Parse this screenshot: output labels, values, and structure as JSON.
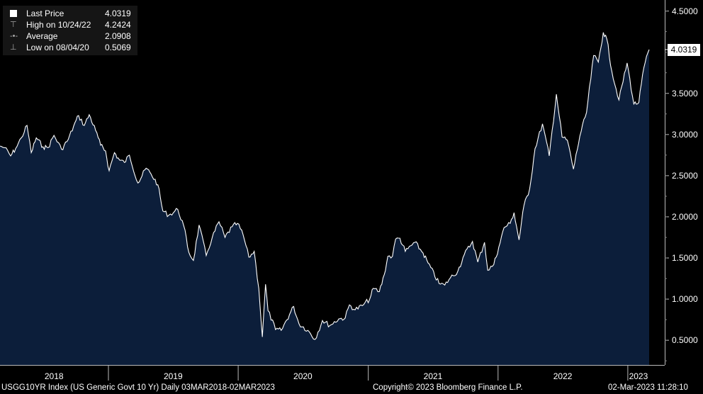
{
  "chart_data": {
    "type": "area",
    "title": "",
    "xlabel": "",
    "ylabel": "",
    "ylim": [
      0.2,
      4.6
    ],
    "y_ticks": [
      "4.5000",
      "3.5000",
      "3.0000",
      "2.5000",
      "2.0000",
      "1.5000",
      "1.0000",
      "0.5000"
    ],
    "x_ticks": [
      "2018",
      "2019",
      "2020",
      "2021",
      "2022",
      "2023"
    ],
    "x_range": [
      "2018-03-02",
      "2023-03-02"
    ],
    "last_value_label": "4.0319",
    "series": [
      {
        "name": "Last Price",
        "color": "#ffffff",
        "fill": "#0c1e3a",
        "points": [
          [
            "2018-03-02",
            2.86
          ],
          [
            "2018-03-15",
            2.84
          ],
          [
            "2018-04-01",
            2.74
          ],
          [
            "2018-04-15",
            2.83
          ],
          [
            "2018-05-01",
            2.96
          ],
          [
            "2018-05-17",
            3.11
          ],
          [
            "2018-05-29",
            2.78
          ],
          [
            "2018-06-12",
            2.96
          ],
          [
            "2018-07-01",
            2.85
          ],
          [
            "2018-07-15",
            2.84
          ],
          [
            "2018-08-01",
            2.99
          ],
          [
            "2018-08-22",
            2.82
          ],
          [
            "2018-09-10",
            2.94
          ],
          [
            "2018-09-25",
            3.1
          ],
          [
            "2018-10-09",
            3.23
          ],
          [
            "2018-10-25",
            3.11
          ],
          [
            "2018-11-08",
            3.24
          ],
          [
            "2018-11-26",
            3.05
          ],
          [
            "2018-12-10",
            2.87
          ],
          [
            "2018-12-24",
            2.8
          ],
          [
            "2019-01-03",
            2.56
          ],
          [
            "2019-01-18",
            2.78
          ],
          [
            "2019-02-01",
            2.69
          ],
          [
            "2019-02-15",
            2.66
          ],
          [
            "2019-03-01",
            2.75
          ],
          [
            "2019-03-25",
            2.41
          ],
          [
            "2019-04-17",
            2.59
          ],
          [
            "2019-05-01",
            2.52
          ],
          [
            "2019-05-20",
            2.39
          ],
          [
            "2019-06-03",
            2.07
          ],
          [
            "2019-06-20",
            2.02
          ],
          [
            "2019-07-15",
            2.09
          ],
          [
            "2019-08-01",
            1.89
          ],
          [
            "2019-08-15",
            1.57
          ],
          [
            "2019-08-28",
            1.47
          ],
          [
            "2019-09-13",
            1.9
          ],
          [
            "2019-10-03",
            1.53
          ],
          [
            "2019-10-20",
            1.75
          ],
          [
            "2019-11-08",
            1.94
          ],
          [
            "2019-11-25",
            1.75
          ],
          [
            "2019-12-15",
            1.88
          ],
          [
            "2019-12-30",
            1.92
          ],
          [
            "2020-01-15",
            1.78
          ],
          [
            "2020-01-31",
            1.51
          ],
          [
            "2020-02-15",
            1.58
          ],
          [
            "2020-02-28",
            1.13
          ],
          [
            "2020-03-09",
            0.54
          ],
          [
            "2020-03-18",
            1.18
          ],
          [
            "2020-03-25",
            0.86
          ],
          [
            "2020-04-15",
            0.63
          ],
          [
            "2020-05-01",
            0.62
          ],
          [
            "2020-06-05",
            0.91
          ],
          [
            "2020-06-20",
            0.7
          ],
          [
            "2020-07-15",
            0.62
          ],
          [
            "2020-08-04",
            0.51
          ],
          [
            "2020-08-25",
            0.74
          ],
          [
            "2020-09-15",
            0.68
          ],
          [
            "2020-10-10",
            0.76
          ],
          [
            "2020-10-28",
            0.77
          ],
          [
            "2020-11-09",
            0.93
          ],
          [
            "2020-11-25",
            0.87
          ],
          [
            "2020-12-15",
            0.92
          ],
          [
            "2021-01-05",
            1.0
          ],
          [
            "2021-01-15",
            1.13
          ],
          [
            "2021-02-01",
            1.09
          ],
          [
            "2021-02-15",
            1.3
          ],
          [
            "2021-02-25",
            1.52
          ],
          [
            "2021-03-10",
            1.52
          ],
          [
            "2021-03-19",
            1.73
          ],
          [
            "2021-03-31",
            1.74
          ],
          [
            "2021-04-15",
            1.58
          ],
          [
            "2021-05-12",
            1.69
          ],
          [
            "2021-06-04",
            1.56
          ],
          [
            "2021-06-18",
            1.44
          ],
          [
            "2021-07-19",
            1.19
          ],
          [
            "2021-08-04",
            1.17
          ],
          [
            "2021-08-20",
            1.26
          ],
          [
            "2021-09-10",
            1.34
          ],
          [
            "2021-09-28",
            1.54
          ],
          [
            "2021-10-21",
            1.7
          ],
          [
            "2021-11-05",
            1.45
          ],
          [
            "2021-11-24",
            1.69
          ],
          [
            "2021-12-03",
            1.35
          ],
          [
            "2021-12-20",
            1.42
          ],
          [
            "2022-01-03",
            1.63
          ],
          [
            "2022-01-18",
            1.87
          ],
          [
            "2022-02-04",
            1.92
          ],
          [
            "2022-02-15",
            2.05
          ],
          [
            "2022-03-01",
            1.72
          ],
          [
            "2022-03-15",
            2.14
          ],
          [
            "2022-03-31",
            2.34
          ],
          [
            "2022-04-15",
            2.83
          ],
          [
            "2022-05-06",
            3.13
          ],
          [
            "2022-05-25",
            2.74
          ],
          [
            "2022-06-14",
            3.49
          ],
          [
            "2022-06-30",
            2.97
          ],
          [
            "2022-07-15",
            2.93
          ],
          [
            "2022-08-01",
            2.58
          ],
          [
            "2022-08-19",
            2.98
          ],
          [
            "2022-09-07",
            3.27
          ],
          [
            "2022-09-27",
            3.96
          ],
          [
            "2022-10-10",
            3.88
          ],
          [
            "2022-10-24",
            4.24
          ],
          [
            "2022-11-03",
            4.16
          ],
          [
            "2022-11-17",
            3.77
          ],
          [
            "2022-12-07",
            3.42
          ],
          [
            "2022-12-30",
            3.87
          ],
          [
            "2023-01-18",
            3.37
          ],
          [
            "2023-02-01",
            3.39
          ],
          [
            "2023-02-15",
            3.81
          ],
          [
            "2023-03-02",
            4.0319
          ]
        ]
      }
    ]
  },
  "legend": {
    "rows": [
      {
        "label": "Last Price",
        "value": "4.0319",
        "icon": "filled-square-icon"
      },
      {
        "label": "High on 10/24/22",
        "value": "4.2424",
        "icon": "high-marker-icon"
      },
      {
        "label": "Average",
        "value": "2.0908",
        "icon": "average-line-icon"
      },
      {
        "label": "Low on 08/04/20",
        "value": "0.5069",
        "icon": "low-marker-icon"
      }
    ]
  },
  "footer": {
    "left": "USGG10YR Index (US Generic Govt 10 Yr)  Daily 03MAR2018-02MAR2023",
    "center": "Copyright© 2023 Bloomberg Finance L.P.",
    "right": "02-Mar-2023 11:28:10"
  },
  "colors": {
    "background": "#000000",
    "area_fill": "#0c1e3a",
    "line": "#ffffff",
    "legend_bg": "#151515"
  }
}
